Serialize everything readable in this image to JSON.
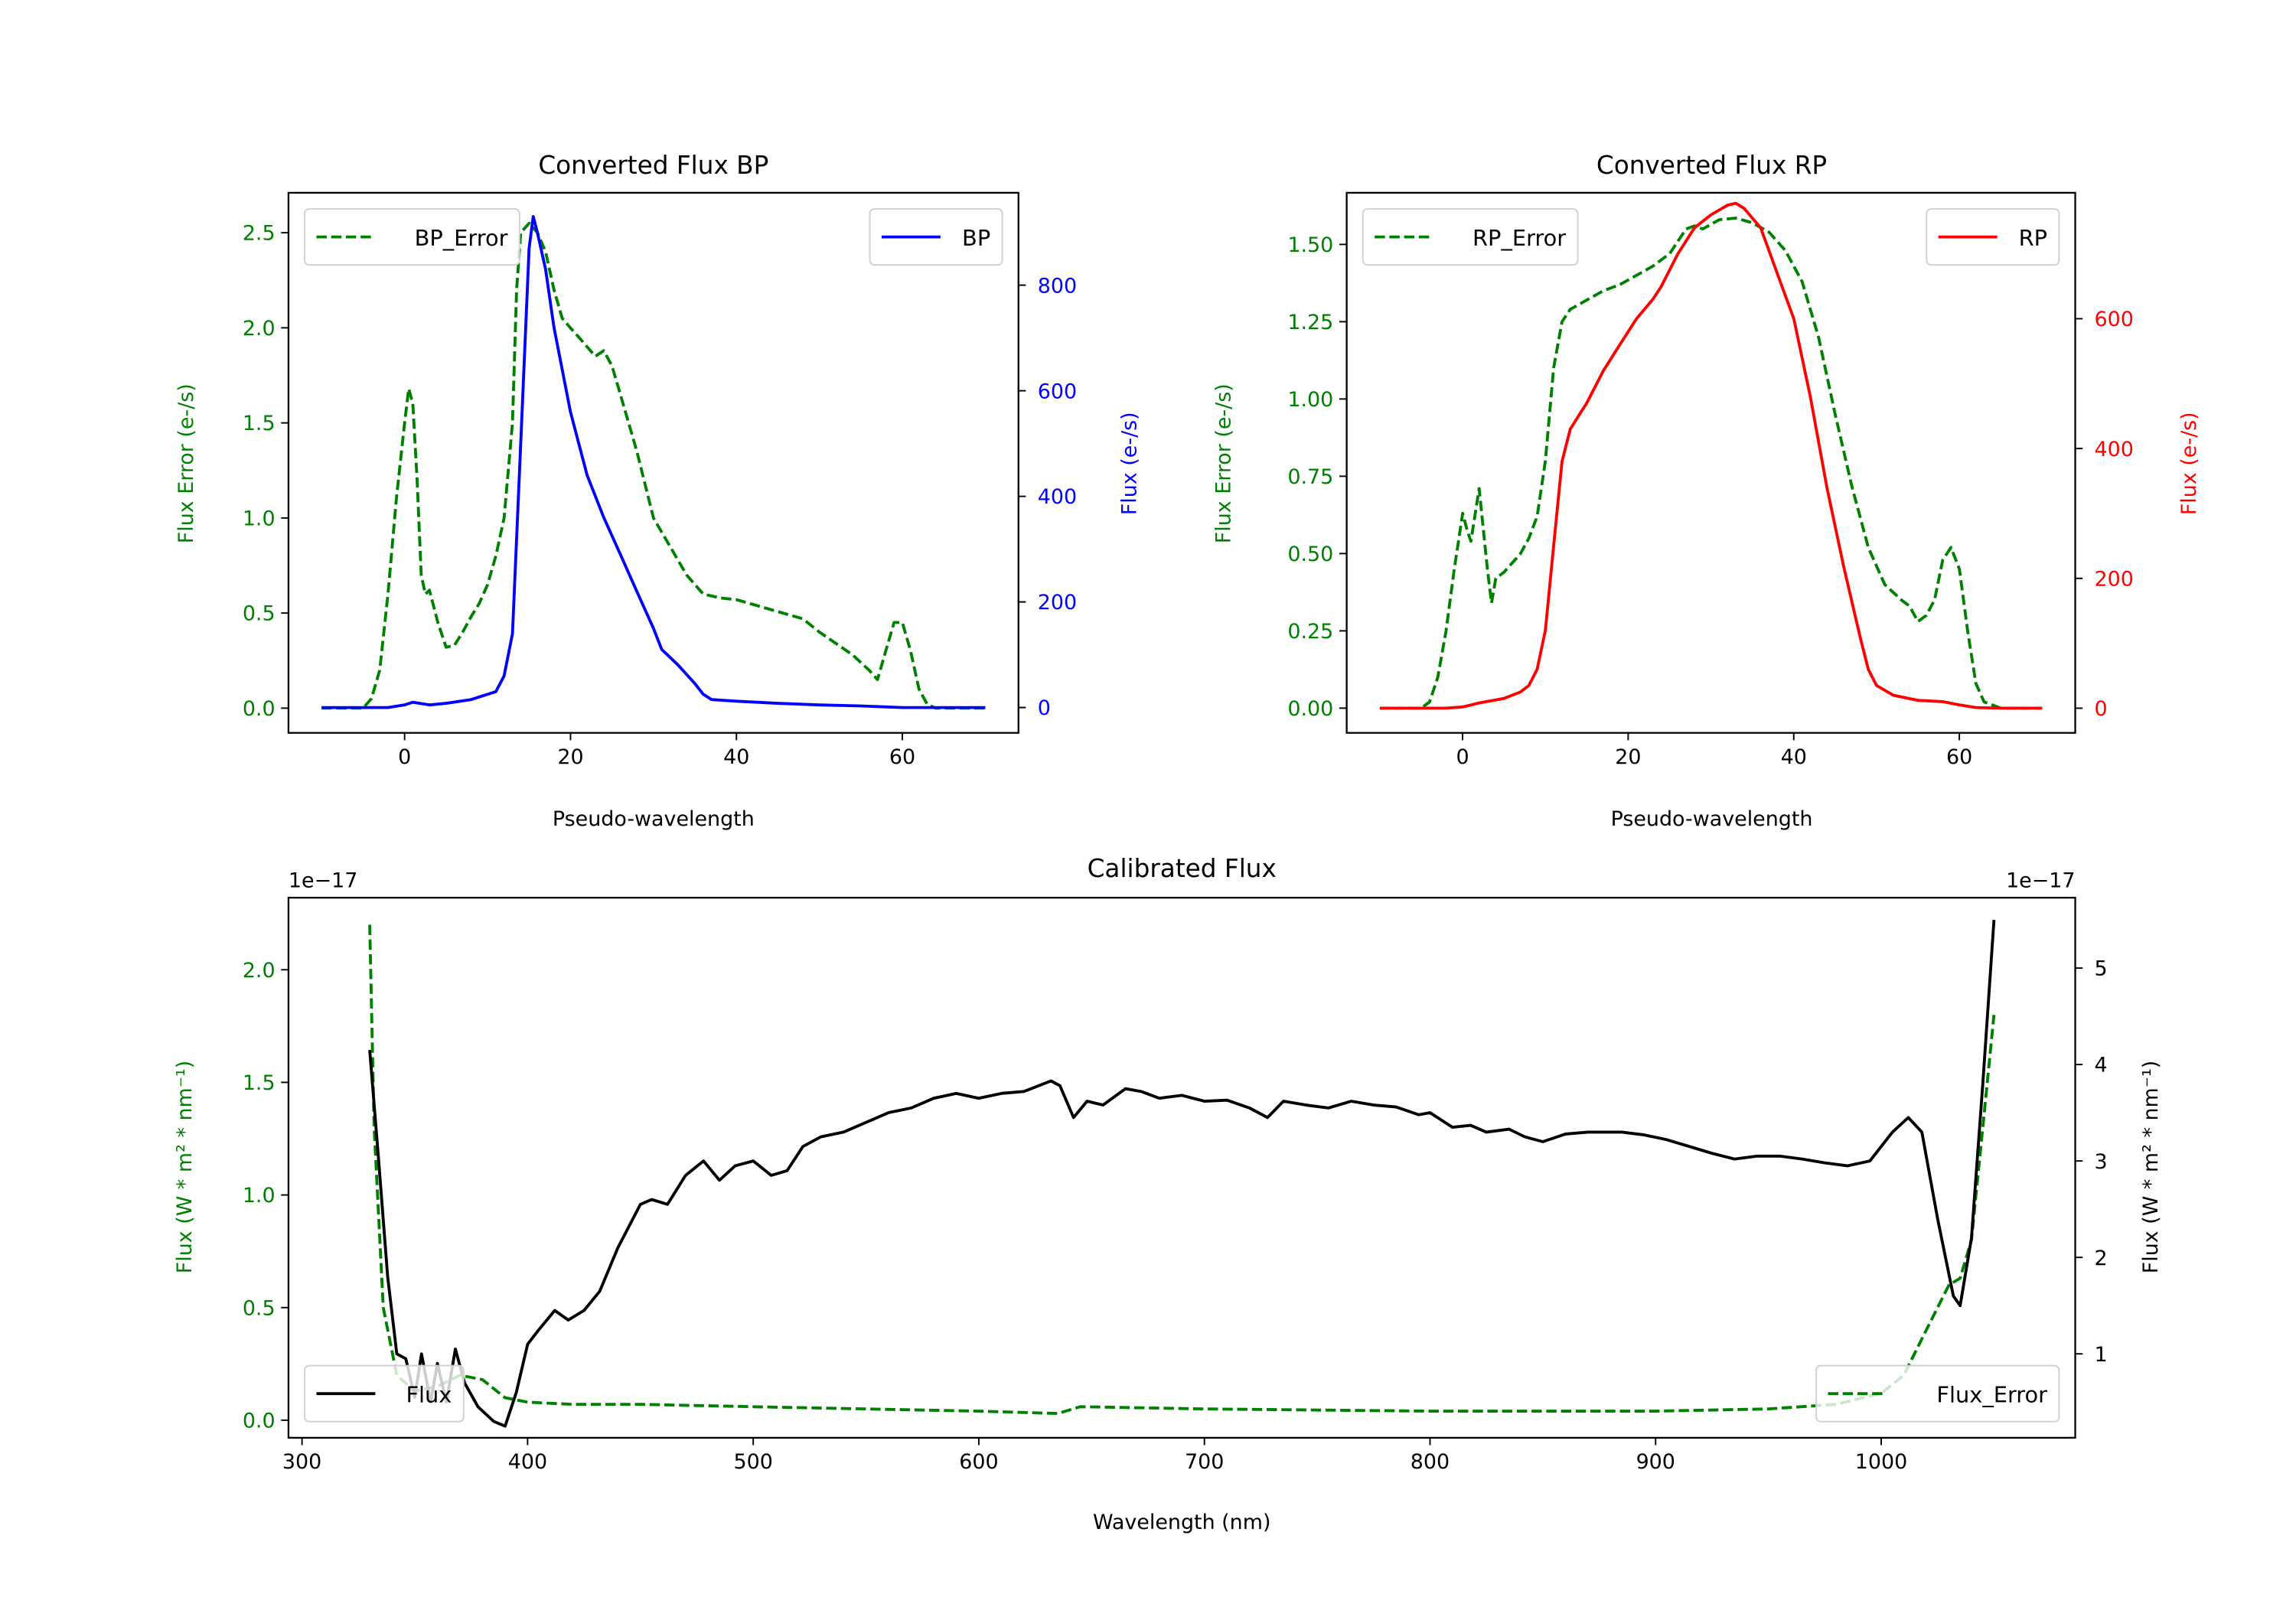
{
  "chart_data": [
    {
      "id": "bp",
      "type": "line",
      "title": "Converted Flux BP",
      "xlabel": "Pseudo-wavelength",
      "ylabel_left": "Flux Error (e-/s)",
      "ylabel_right": "Flux (e-/s)",
      "left_color": "#008000",
      "right_color": "#0000ff",
      "xlim": [
        -14,
        74
      ],
      "ylim_left": [
        -0.13,
        2.71
      ],
      "ylim_right": [
        -48,
        975
      ],
      "xticks": [
        0,
        20,
        40,
        60
      ],
      "xtick_labels": [
        "0",
        "20",
        "40",
        "60"
      ],
      "yticks_left": [
        0,
        0.5,
        1.0,
        1.5,
        2.0,
        2.5
      ],
      "ytick_labels_left": [
        "0.0",
        "0.5",
        "1.0",
        "1.5",
        "2.0",
        "2.5"
      ],
      "yticks_right": [
        0,
        200,
        400,
        600,
        800
      ],
      "ytick_labels_right": [
        "0",
        "200",
        "400",
        "600",
        "800"
      ],
      "series": [
        {
          "name": "BP_Error",
          "axis": "left",
          "color": "#008000",
          "style": "dashed",
          "legend_loc": "upper-left",
          "x": [
            -10,
            -5,
            -4,
            -3,
            -2,
            -1,
            0,
            0.5,
            1,
            1.5,
            2,
            2.5,
            3,
            4,
            5,
            6,
            7,
            8,
            9,
            10,
            11,
            12,
            13,
            13.5,
            14,
            15,
            16,
            17,
            18,
            19,
            20,
            21,
            22,
            23,
            24,
            25,
            26,
            28,
            30,
            32,
            34,
            36,
            38,
            40,
            44,
            48,
            50,
            54,
            56,
            57,
            58,
            59,
            60,
            61,
            62,
            63,
            64,
            70
          ],
          "y": [
            0,
            0,
            0.05,
            0.2,
            0.6,
            1.1,
            1.5,
            1.68,
            1.6,
            1.2,
            0.7,
            0.6,
            0.62,
            0.45,
            0.32,
            0.33,
            0.4,
            0.48,
            0.55,
            0.65,
            0.8,
            1.0,
            1.5,
            2.2,
            2.5,
            2.55,
            2.5,
            2.4,
            2.2,
            2.05,
            2.0,
            1.95,
            1.9,
            1.85,
            1.88,
            1.8,
            1.65,
            1.35,
            1.0,
            0.85,
            0.7,
            0.6,
            0.58,
            0.57,
            0.52,
            0.47,
            0.4,
            0.28,
            0.2,
            0.15,
            0.3,
            0.45,
            0.45,
            0.3,
            0.1,
            0.02,
            0,
            0
          ]
        },
        {
          "name": "BP",
          "axis": "right",
          "color": "#0000ff",
          "style": "solid",
          "legend_loc": "upper-right",
          "x": [
            -10,
            -2,
            0,
            1,
            3,
            5,
            8,
            11,
            12,
            13,
            14,
            15,
            15.5,
            16,
            17,
            18,
            20,
            22,
            24,
            26,
            28,
            30,
            31,
            33,
            35,
            36,
            37,
            40,
            45,
            50,
            55,
            60,
            65,
            70
          ],
          "y": [
            0,
            0,
            5,
            10,
            5,
            8,
            15,
            30,
            60,
            140,
            500,
            870,
            930,
            900,
            830,
            720,
            560,
            440,
            360,
            290,
            220,
            150,
            110,
            80,
            45,
            25,
            15,
            12,
            8,
            5,
            3,
            0,
            0,
            0
          ]
        }
      ]
    },
    {
      "id": "rp",
      "type": "line",
      "title": "Converted Flux RP",
      "xlabel": "Pseudo-wavelength",
      "ylabel_left": "Flux Error (e-/s)",
      "ylabel_right": "Flux (e-/s)",
      "left_color": "#008000",
      "right_color": "#ff0000",
      "xlim": [
        -14,
        74
      ],
      "ylim_left": [
        -0.08,
        1.667
      ],
      "ylim_right": [
        -38,
        794
      ],
      "xticks": [
        0,
        20,
        40,
        60
      ],
      "xtick_labels": [
        "0",
        "20",
        "40",
        "60"
      ],
      "yticks_left": [
        0,
        0.25,
        0.5,
        0.75,
        1.0,
        1.25,
        1.5
      ],
      "ytick_labels_left": [
        "0.00",
        "0.25",
        "0.50",
        "0.75",
        "1.00",
        "1.25",
        "1.50"
      ],
      "yticks_right": [
        0,
        200,
        400,
        600
      ],
      "ytick_labels_right": [
        "0",
        "200",
        "400",
        "600"
      ],
      "series": [
        {
          "name": "RP_Error",
          "axis": "left",
          "color": "#008000",
          "style": "dashed",
          "legend_loc": "upper-left",
          "x": [
            -10,
            -5,
            -4,
            -3,
            -2,
            -1,
            0,
            0.5,
            1,
            2,
            3,
            3.5,
            4,
            5,
            6,
            7,
            8,
            9,
            10,
            11,
            12,
            13,
            15,
            17,
            19,
            21,
            23,
            25,
            27,
            28,
            29,
            31,
            33,
            35,
            37,
            39,
            41,
            43,
            45,
            47,
            49,
            51,
            53,
            54,
            55,
            56,
            57,
            58,
            59,
            60,
            61,
            62,
            63,
            65,
            70
          ],
          "y": [
            0,
            0,
            0.02,
            0.1,
            0.25,
            0.45,
            0.63,
            0.58,
            0.54,
            0.71,
            0.45,
            0.34,
            0.42,
            0.44,
            0.47,
            0.5,
            0.55,
            0.62,
            0.8,
            1.1,
            1.25,
            1.29,
            1.32,
            1.35,
            1.37,
            1.4,
            1.43,
            1.47,
            1.55,
            1.56,
            1.55,
            1.58,
            1.585,
            1.57,
            1.54,
            1.48,
            1.38,
            1.2,
            0.95,
            0.72,
            0.52,
            0.4,
            0.35,
            0.33,
            0.28,
            0.3,
            0.35,
            0.48,
            0.52,
            0.45,
            0.25,
            0.08,
            0.02,
            0,
            0
          ]
        },
        {
          "name": "RP",
          "axis": "right",
          "color": "#ff0000",
          "style": "solid",
          "legend_loc": "upper-right",
          "x": [
            -10,
            -2,
            0,
            2,
            5,
            7,
            8,
            9,
            10,
            11,
            12,
            13,
            14,
            15,
            17,
            19,
            21,
            23,
            24,
            26,
            28,
            30,
            32,
            33,
            34,
            36,
            38,
            40,
            42,
            44,
            46,
            48,
            49,
            50,
            52,
            55,
            58,
            60,
            62,
            65,
            70
          ],
          "y": [
            0,
            0,
            2,
            8,
            15,
            25,
            35,
            60,
            120,
            250,
            380,
            430,
            450,
            470,
            520,
            560,
            600,
            630,
            650,
            700,
            740,
            760,
            775,
            778,
            770,
            740,
            670,
            600,
            480,
            340,
            220,
            110,
            60,
            35,
            20,
            12,
            10,
            5,
            1,
            0,
            0
          ]
        }
      ]
    },
    {
      "id": "calibrated",
      "type": "line",
      "title": "Calibrated Flux",
      "xlabel": "Wavelength (nm)",
      "ylabel_left": "Flux (W * m² * nm⁻¹)",
      "ylabel_right": "Flux (W * m² * nm⁻¹)",
      "offset_left": "1e−17",
      "offset_right": "1e−17",
      "left_color": "#008000",
      "right_color": "#000000",
      "xlim": [
        294,
        1086
      ],
      "ylim_left": [
        -0.078,
        2.32
      ],
      "ylim_right": [
        0.13,
        5.73
      ],
      "xticks": [
        300,
        400,
        500,
        600,
        700,
        800,
        900,
        1000
      ],
      "xtick_labels": [
        "300",
        "400",
        "500",
        "600",
        "700",
        "800",
        "900",
        "1000"
      ],
      "yticks_left": [
        0,
        0.5,
        1.0,
        1.5,
        2.0
      ],
      "ytick_labels_left": [
        "0.0",
        "0.5",
        "1.0",
        "1.5",
        "2.0"
      ],
      "yticks_right": [
        1,
        2,
        3,
        4,
        5
      ],
      "ytick_labels_right": [
        "1",
        "2",
        "3",
        "4",
        "5"
      ],
      "series": [
        {
          "name": "Flux_Error",
          "axis": "left",
          "color": "#008000",
          "style": "dashed",
          "legend_loc": "lower-right",
          "x": [
            330,
            332,
            336,
            342,
            350,
            360,
            370,
            380,
            390,
            400,
            420,
            450,
            500,
            550,
            600,
            635,
            645,
            700,
            800,
            900,
            950,
            980,
            1000,
            1010,
            1020,
            1030,
            1035,
            1040,
            1045,
            1050
          ],
          "y": [
            2.2,
            1.3,
            0.5,
            0.2,
            0.13,
            0.15,
            0.2,
            0.18,
            0.1,
            0.08,
            0.07,
            0.07,
            0.06,
            0.05,
            0.04,
            0.03,
            0.06,
            0.05,
            0.04,
            0.04,
            0.05,
            0.07,
            0.12,
            0.2,
            0.4,
            0.6,
            0.63,
            0.8,
            1.3,
            1.8
          ]
        },
        {
          "name": "Flux",
          "axis": "right",
          "color": "#000000",
          "style": "solid",
          "legend_loc": "lower-left",
          "x": [
            330,
            334,
            338,
            342,
            346,
            350,
            353,
            357,
            360,
            364,
            368,
            372,
            378,
            385,
            390,
            395,
            400,
            405,
            412,
            418,
            425,
            432,
            440,
            450,
            455,
            462,
            470,
            478,
            485,
            492,
            500,
            508,
            515,
            522,
            530,
            540,
            550,
            560,
            570,
            580,
            590,
            600,
            610,
            620,
            632,
            636,
            642,
            648,
            655,
            665,
            672,
            680,
            690,
            700,
            710,
            720,
            728,
            735,
            745,
            755,
            765,
            775,
            785,
            795,
            800,
            810,
            818,
            825,
            835,
            842,
            850,
            860,
            870,
            885,
            895,
            905,
            915,
            925,
            935,
            945,
            955,
            965,
            975,
            985,
            995,
            1005,
            1012,
            1018,
            1025,
            1032,
            1035,
            1040,
            1045,
            1050
          ],
          "y": [
            4.15,
            3.0,
            1.8,
            1.0,
            0.95,
            0.55,
            1.0,
            0.5,
            0.9,
            0.5,
            1.05,
            0.7,
            0.45,
            0.3,
            0.25,
            0.6,
            1.1,
            1.25,
            1.45,
            1.35,
            1.45,
            1.65,
            2.1,
            2.55,
            2.6,
            2.55,
            2.85,
            3.0,
            2.8,
            2.95,
            3.0,
            2.85,
            2.9,
            3.15,
            3.25,
            3.3,
            3.4,
            3.5,
            3.55,
            3.65,
            3.7,
            3.65,
            3.7,
            3.72,
            3.83,
            3.78,
            3.45,
            3.62,
            3.58,
            3.75,
            3.72,
            3.65,
            3.68,
            3.62,
            3.63,
            3.55,
            3.45,
            3.62,
            3.58,
            3.55,
            3.62,
            3.58,
            3.56,
            3.48,
            3.5,
            3.35,
            3.37,
            3.3,
            3.33,
            3.25,
            3.2,
            3.28,
            3.3,
            3.3,
            3.27,
            3.22,
            3.15,
            3.08,
            3.02,
            3.05,
            3.05,
            3.02,
            2.98,
            2.95,
            3.0,
            3.3,
            3.45,
            3.3,
            2.4,
            1.6,
            1.5,
            2.2,
            3.8,
            5.5
          ]
        }
      ]
    }
  ]
}
